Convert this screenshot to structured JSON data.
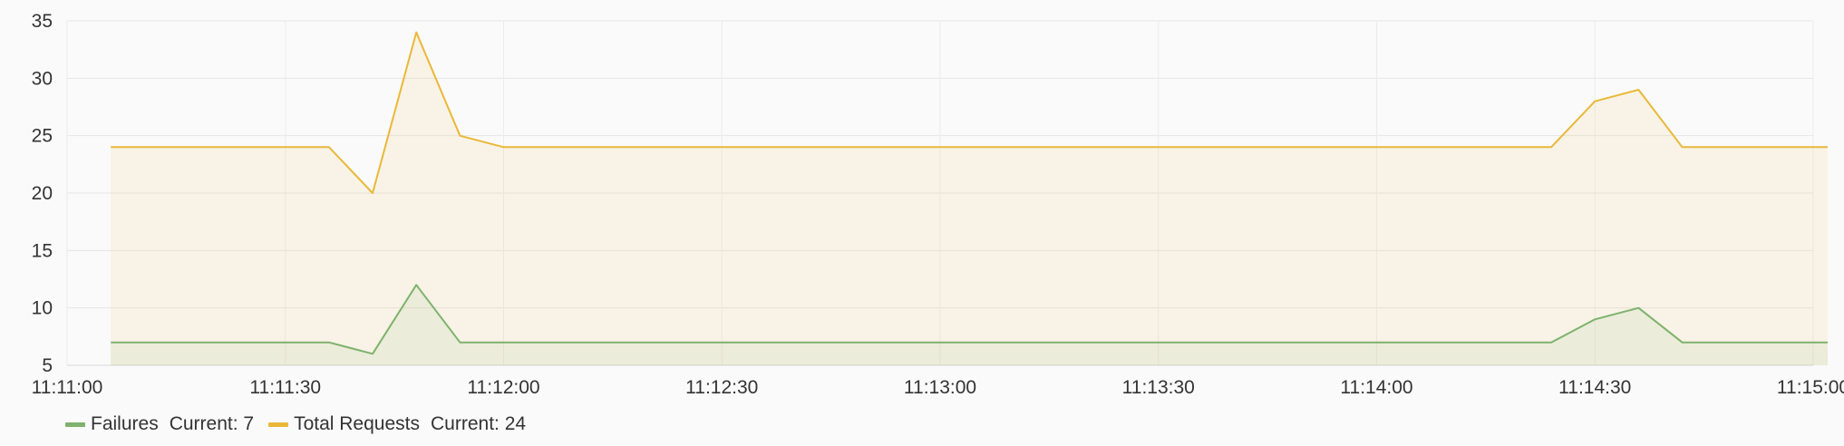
{
  "chart_data": {
    "type": "area",
    "x": [
      "11:11:06",
      "11:11:36",
      "11:11:42",
      "11:11:48",
      "11:11:54",
      "11:12:00",
      "11:14:24",
      "11:14:30",
      "11:14:36",
      "11:14:42",
      "11:15:02"
    ],
    "x_range": [
      "11:11:00",
      "11:15:00"
    ],
    "x_tick_labels": [
      "11:11:00",
      "11:11:30",
      "11:12:00",
      "11:12:30",
      "11:13:00",
      "11:13:30",
      "11:14:00",
      "11:14:30",
      "11:15:00"
    ],
    "ylim": [
      5,
      35
    ],
    "y_ticks": [
      5,
      10,
      15,
      20,
      25,
      30,
      35
    ],
    "grid": true,
    "legend_position": "bottom-left",
    "series": [
      {
        "name": "Failures",
        "color": "#7eb26d",
        "current_label": "Current: 7",
        "values": [
          7,
          7,
          6,
          12,
          7,
          7,
          7,
          9,
          10,
          7,
          7
        ]
      },
      {
        "name": "Total Requests",
        "color": "#eab839",
        "current_label": "Current: 24",
        "values": [
          24,
          24,
          20,
          34,
          25,
          24,
          24,
          28,
          29,
          24,
          24
        ]
      }
    ]
  }
}
